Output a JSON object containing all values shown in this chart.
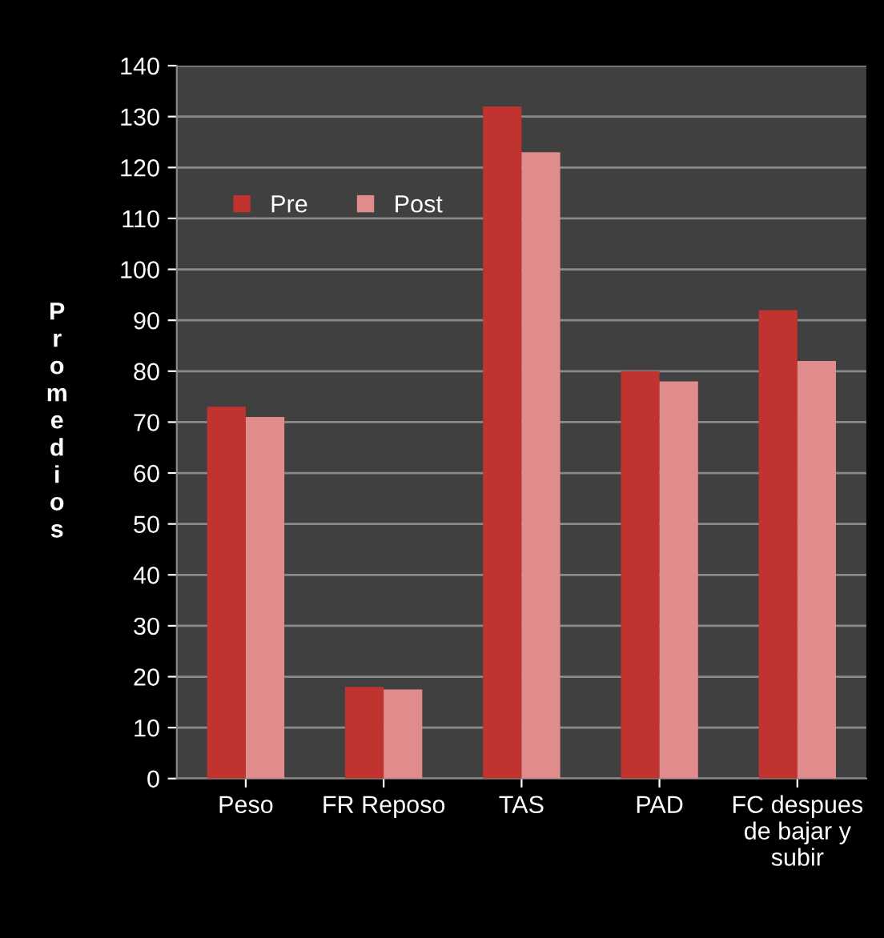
{
  "chart_data": {
    "type": "bar",
    "ylabel": "Promedios",
    "categories": [
      "Peso",
      "FR Reposo",
      "TAS",
      "PAD",
      "FC despues de bajar y subir"
    ],
    "series": [
      {
        "name": "Pre",
        "color": "#c0332f",
        "values": [
          73,
          18,
          132,
          80,
          92
        ]
      },
      {
        "name": "Post",
        "color": "#e08c8c",
        "values": [
          71,
          17.5,
          123,
          78,
          82
        ]
      }
    ],
    "ylim": [
      0,
      140
    ],
    "yticks": [
      0,
      10,
      20,
      30,
      40,
      50,
      60,
      70,
      80,
      90,
      100,
      110,
      120,
      130,
      140
    ],
    "grid": "y",
    "legend": "top left"
  }
}
